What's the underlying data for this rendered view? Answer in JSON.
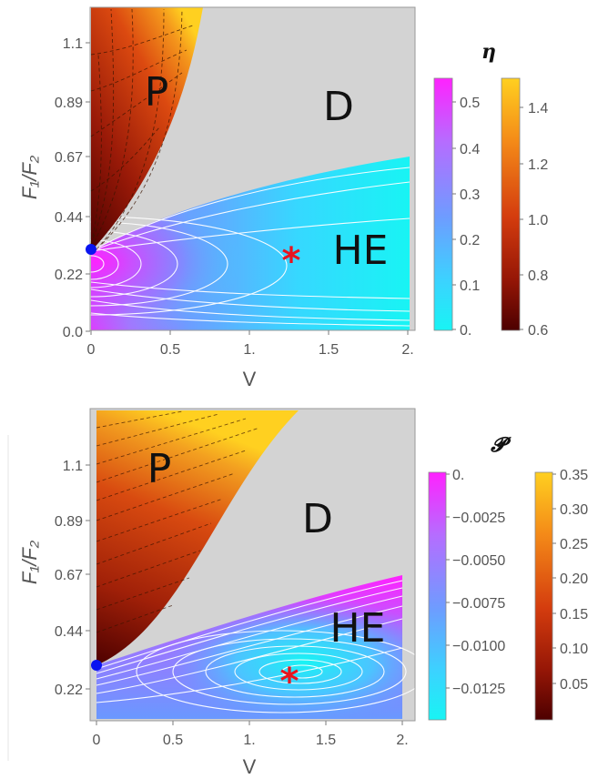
{
  "chart_data": [
    {
      "type": "heatmap",
      "panel": "top",
      "xlabel": "V",
      "ylabel": "F₁/F₂",
      "xlim": [
        0,
        2
      ],
      "ylim": [
        -0.03,
        1.22
      ],
      "xticks": [
        "0",
        "0.5",
        "1.",
        "1.5",
        "2."
      ],
      "yticks": [
        "0.0",
        "0.22",
        "0.44",
        "0.67",
        "0.89",
        "1.1"
      ],
      "regions": [
        "P",
        "D",
        "HE"
      ],
      "colorbar_title": "η",
      "colorbar_left_ticks": [
        "0.5",
        "0.4",
        "0.3",
        "0.2",
        "0.1",
        "0."
      ],
      "colorbar_right_ticks": [
        "1.4",
        "1.2",
        "1.0",
        "0.8",
        "0.6"
      ],
      "colorbar_left_range": [
        0,
        0.55
      ],
      "colorbar_right_range": [
        0.6,
        1.5
      ],
      "point": {
        "x": 0,
        "y": 0.315
      },
      "star": {
        "x": 1.26,
        "y": 0.28
      },
      "colors": {
        "background": "#d3d3d3",
        "he_low": "#18f4f4",
        "he_high": "#ff22ff",
        "p_low": "#4d0000",
        "p_high": "#ffd020",
        "point": "#0a14f0",
        "star": "#e8141e"
      }
    },
    {
      "type": "heatmap",
      "panel": "bottom",
      "xlabel": "V",
      "ylabel": "F₁/F₂",
      "xlim": [
        0,
        2
      ],
      "ylim": [
        0.1,
        1.3
      ],
      "xticks": [
        "0",
        "0.5",
        "1.",
        "1.5",
        "2."
      ],
      "yticks": [
        "0.22",
        "0.44",
        "0.67",
        "0.89",
        "1.1"
      ],
      "regions": [
        "P",
        "D",
        "HE"
      ],
      "colorbar_title": "𝓟",
      "colorbar_left_ticks": [
        "0.",
        "−0.0025",
        "−0.0050",
        "−0.0075",
        "−0.0100",
        "−0.0125"
      ],
      "colorbar_right_ticks": [
        "0.35",
        "0.30",
        "0.25",
        "0.20",
        "0.15",
        "0.10",
        "0.05"
      ],
      "colorbar_left_range": [
        -0.0145,
        0
      ],
      "colorbar_right_range": [
        0,
        0.35
      ],
      "point": {
        "x": 0,
        "y": 0.315
      },
      "star": {
        "x": 1.26,
        "y": 0.28
      },
      "colors": {
        "background": "#d3d3d3",
        "he_low": "#18f4f4",
        "he_high": "#ff22ff",
        "p_low": "#4d0000",
        "p_high": "#ffd020",
        "point": "#0a14f0",
        "star": "#e8141e"
      }
    }
  ]
}
